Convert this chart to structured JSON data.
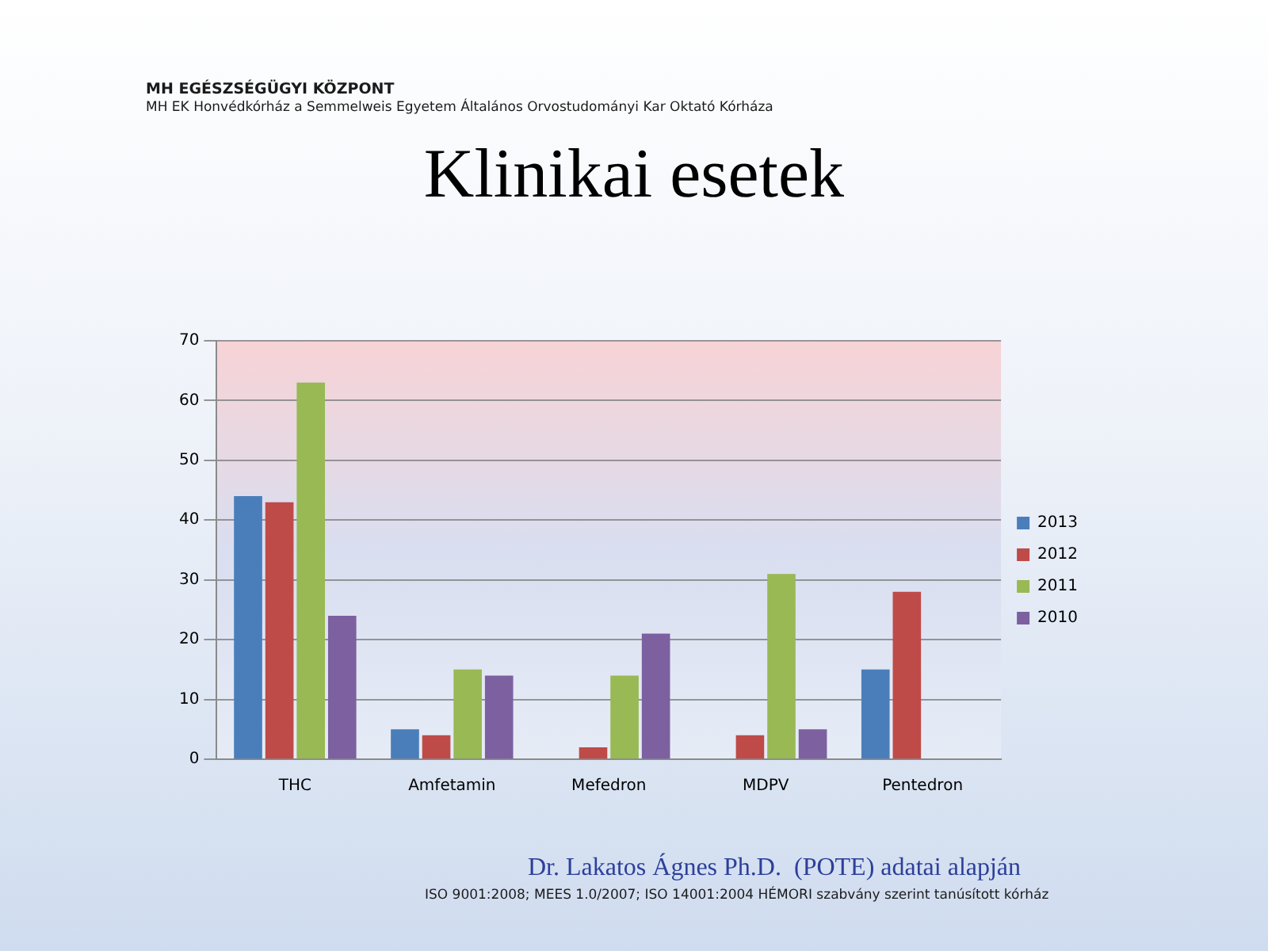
{
  "chart_data": {
    "type": "bar",
    "title": "Klinikai esetek",
    "categories": [
      "THC",
      "Amfetamin",
      "Mefedron",
      "MDPV",
      "Pentedron"
    ],
    "series": [
      {
        "name": "2013",
        "color": "#4a7ebb",
        "values": [
          44,
          5,
          0,
          0,
          15
        ]
      },
      {
        "name": "2012",
        "color": "#be4b48",
        "values": [
          43,
          4,
          2,
          4,
          28
        ]
      },
      {
        "name": "2011",
        "color": "#98b954",
        "values": [
          63,
          15,
          14,
          31,
          0
        ]
      },
      {
        "name": "2010",
        "color": "#7d60a0",
        "values": [
          24,
          14,
          21,
          5,
          0
        ]
      }
    ],
    "ylim": [
      0,
      70
    ],
    "yticks": [
      0,
      10,
      20,
      30,
      40,
      50,
      60,
      70
    ],
    "grid": "y",
    "legend": "right",
    "annotations": [
      "MH EGÉSZSÉGÜGYI KÖZPONT",
      "MH EK Honvédkórház a Semmelweis Egyetem Általános Orvostudományi Kar Oktató Kórháza",
      "Dr. Lakatos Ágnes Ph.D.  (POTE) adatai alapján",
      "ISO 9001:2008; MEES 1.0/2007; ISO 14001:2004 HÉMORI szabvány szerint tanúsított kórház"
    ]
  }
}
